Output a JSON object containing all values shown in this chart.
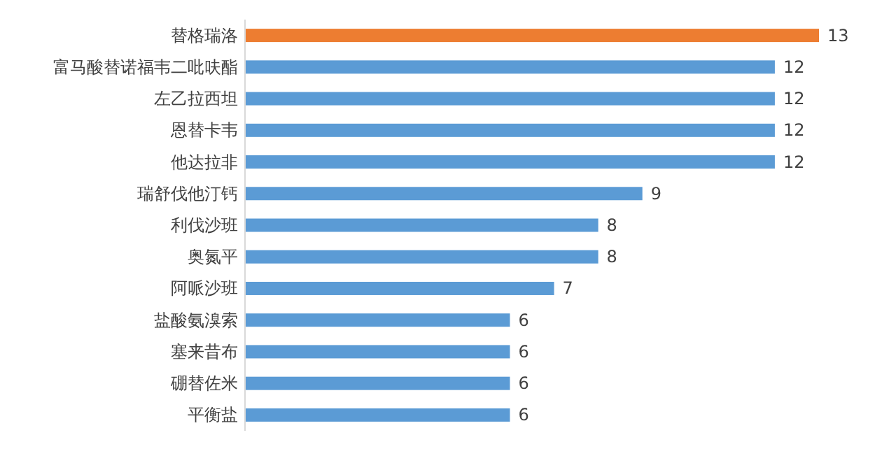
{
  "chart_data": {
    "type": "bar",
    "orientation": "horizontal",
    "data_labels": true,
    "categories": [
      "替格瑞洛",
      "富马酸替诺福韦二吡呋酯",
      "左乙拉西坦",
      "恩替卡韦",
      "他达拉非",
      "瑞舒伐他汀钙",
      "利伐沙班",
      "奥氮平",
      "阿哌沙班",
      "盐酸氨溴索",
      "塞来昔布",
      "硼替佐米",
      "平衡盐"
    ],
    "values": [
      13,
      12,
      12,
      12,
      12,
      9,
      8,
      8,
      7,
      6,
      6,
      6,
      6
    ],
    "colors": [
      "#ed7d31",
      "#5b9bd5",
      "#5b9bd5",
      "#5b9bd5",
      "#5b9bd5",
      "#5b9bd5",
      "#5b9bd5",
      "#5b9bd5",
      "#5b9bd5",
      "#5b9bd5",
      "#5b9bd5",
      "#5b9bd5",
      "#5b9bd5"
    ]
  }
}
